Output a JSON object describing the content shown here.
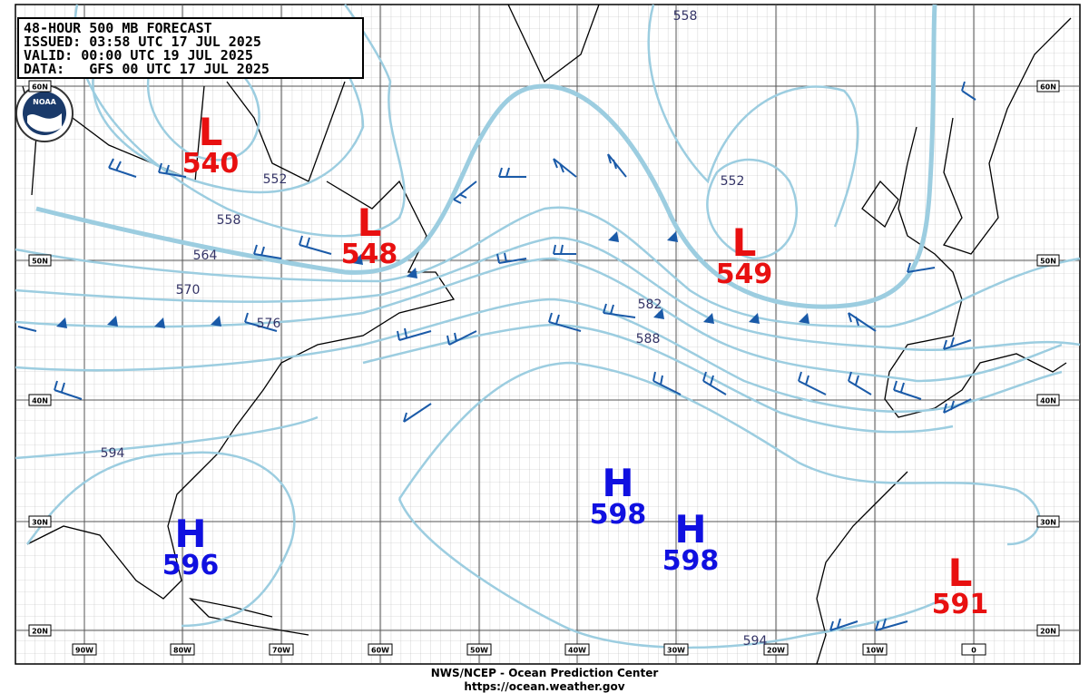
{
  "header": {
    "lines": [
      "48-HOUR 500 MB FORECAST",
      "ISSUED: 03:58 UTC 17 JUL 2025",
      "VALID:  00:00 UTC 19 JUL 2025",
      "DATA:   GFS 00 UTC 17 JUL 2025"
    ]
  },
  "logo": "NOAA",
  "latitude_labels": [
    "60N",
    "50N",
    "40N",
    "30N",
    "20N"
  ],
  "longitude_labels": [
    "90W",
    "80W",
    "70W",
    "60W",
    "50W",
    "40W",
    "30W",
    "20W",
    "10W",
    "0"
  ],
  "centers": [
    {
      "type": "L",
      "value": 540
    },
    {
      "type": "L",
      "value": 548
    },
    {
      "type": "L",
      "value": 549
    },
    {
      "type": "H",
      "value": 596
    },
    {
      "type": "H",
      "value": 598
    },
    {
      "type": "H",
      "value": 598
    },
    {
      "type": "L",
      "value": 591
    }
  ],
  "contour_labels": [
    "558",
    "552",
    "558",
    "564",
    "570",
    "576",
    "582",
    "588",
    "594",
    "594",
    "552"
  ],
  "footer": {
    "agency": "NWS/NCEP - Ocean Prediction Center",
    "url": "https://ocean.weather.gov"
  }
}
